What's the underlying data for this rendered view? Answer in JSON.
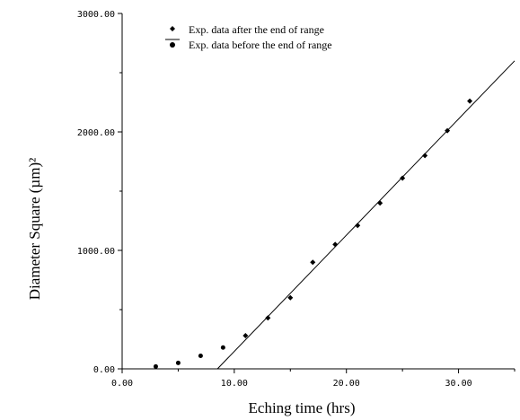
{
  "chart_data": {
    "type": "scatter",
    "xlabel": "Eching time (hrs)",
    "ylabel": "Diameter Square (µm)²",
    "xlim": [
      0,
      35
    ],
    "ylim": [
      0,
      3000
    ],
    "xticks": [
      0,
      10,
      20,
      30
    ],
    "yticks": [
      0,
      1000,
      2000,
      3000
    ],
    "xtick_labels": [
      "0.00",
      "10.00",
      "20.00",
      "30.00"
    ],
    "ytick_labels": [
      "0.00",
      "1000.00",
      "2000.00",
      "3000.00"
    ],
    "grid": false,
    "legend_position": "top-left",
    "legend": [
      {
        "marker": "diamond",
        "label": "Exp. data after the end of range"
      },
      {
        "marker": "line",
        "label": ""
      },
      {
        "marker": "circle",
        "label": "Exp. data before the end of range"
      }
    ],
    "series": [
      {
        "marker": "diamond",
        "x": [
          11,
          13,
          15,
          17,
          19,
          21,
          23,
          25,
          27,
          29,
          31
        ],
        "y": [
          280,
          430,
          600,
          900,
          1050,
          1210,
          1400,
          1610,
          1800,
          2010,
          2260
        ]
      },
      {
        "marker": "circle",
        "x": [
          3,
          5,
          7,
          9
        ],
        "y": [
          20,
          50,
          110,
          180
        ]
      }
    ],
    "fit_line": {
      "x": [
        8.5,
        35
      ],
      "y": [
        0,
        2600
      ]
    }
  }
}
